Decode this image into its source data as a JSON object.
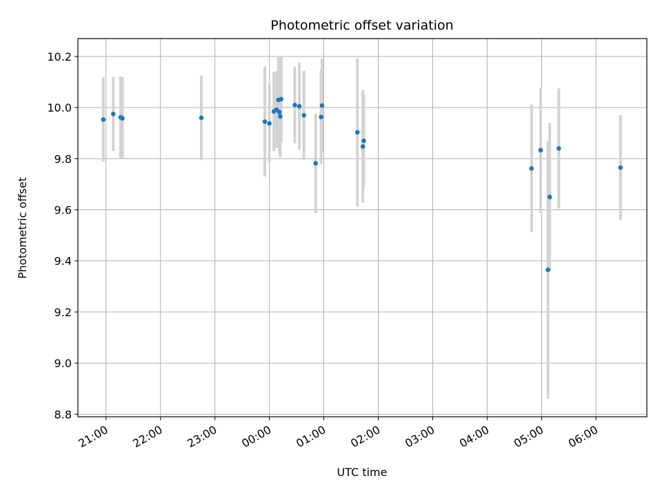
{
  "chart_data": {
    "type": "scatter",
    "title": "Photometric offset variation",
    "xlabel": "UTC time",
    "ylabel": "Photometric offset",
    "x_unit": "UTC time of day (HH:MM), spanning midnight",
    "xlim": [
      "20:29",
      "06:56"
    ],
    "ylim": [
      8.79,
      10.27
    ],
    "x_ticks": [
      "21:00",
      "22:00",
      "23:00",
      "00:00",
      "01:00",
      "02:00",
      "03:00",
      "04:00",
      "05:00",
      "06:00"
    ],
    "y_ticks": [
      8.8,
      9.0,
      9.2,
      9.4,
      9.6,
      9.8,
      10.0,
      10.2
    ],
    "y_tick_labels": [
      "8.8",
      "9.0",
      "9.2",
      "9.4",
      "9.6",
      "9.8",
      "10.0",
      "10.2"
    ],
    "grid": true,
    "marker_color": "#1f77b4",
    "errorbar_color": "#d3d3d3",
    "points": [
      {
        "time": "20:57",
        "y": 9.953,
        "err": 0.165
      },
      {
        "time": "21:08",
        "y": 9.975,
        "err": 0.145
      },
      {
        "time": "21:16",
        "y": 9.962,
        "err": 0.16
      },
      {
        "time": "21:18",
        "y": 9.958,
        "err": 0.16
      },
      {
        "time": "22:45",
        "y": 9.96,
        "err": 0.165
      },
      {
        "time": "23:55",
        "y": 9.945,
        "err": 0.215
      },
      {
        "time": "00:00",
        "y": 9.938,
        "err": 0.152
      },
      {
        "time": "00:05",
        "y": 9.985,
        "err": 0.155
      },
      {
        "time": "00:08",
        "y": 9.992,
        "err": 0.15
      },
      {
        "time": "00:10",
        "y": 10.03,
        "err": 0.17
      },
      {
        "time": "00:11",
        "y": 9.982,
        "err": 0.16
      },
      {
        "time": "00:12",
        "y": 9.965,
        "err": 0.16
      },
      {
        "time": "00:13",
        "y": 10.033,
        "err": 0.17
      },
      {
        "time": "00:28",
        "y": 10.01,
        "err": 0.15
      },
      {
        "time": "00:33",
        "y": 10.005,
        "err": 0.17
      },
      {
        "time": "00:38",
        "y": 9.97,
        "err": 0.175
      },
      {
        "time": "00:51",
        "y": 9.782,
        "err": 0.195
      },
      {
        "time": "00:57",
        "y": 9.963,
        "err": 0.185
      },
      {
        "time": "00:58",
        "y": 10.008,
        "err": 0.185
      },
      {
        "time": "01:37",
        "y": 9.903,
        "err": 0.29
      },
      {
        "time": "01:43",
        "y": 9.848,
        "err": 0.22
      },
      {
        "time": "01:44",
        "y": 9.87,
        "err": 0.18
      },
      {
        "time": "04:49",
        "y": 9.762,
        "err": 0.25
      },
      {
        "time": "04:59",
        "y": 9.833,
        "err": 0.245
      },
      {
        "time": "05:07",
        "y": 9.365,
        "err": 0.505
      },
      {
        "time": "05:09",
        "y": 9.65,
        "err": 0.29
      },
      {
        "time": "05:19",
        "y": 9.84,
        "err": 0.235
      },
      {
        "time": "06:27",
        "y": 9.765,
        "err": 0.205
      }
    ]
  }
}
